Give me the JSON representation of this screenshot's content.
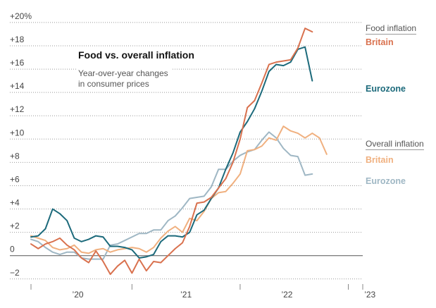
{
  "chart_data": {
    "type": "line",
    "title": "Food vs. overall inflation",
    "subtitle": "Year-over-year changes in consumer prices",
    "ylim": [
      -2.8,
      20.6
    ],
    "xlim": [
      0,
      46
    ],
    "y_ticks": [
      "+20%",
      "+18",
      "+16",
      "+14",
      "+12",
      "+10",
      "+8",
      "+6",
      "+4",
      "+2",
      "0",
      "−2"
    ],
    "y_tick_values": [
      20,
      18,
      16,
      14,
      12,
      10,
      8,
      6,
      4,
      2,
      0,
      -2
    ],
    "x_ticks": [
      "’20",
      "’21",
      "’22",
      "’23"
    ],
    "x_tick_positions": [
      6.5,
      21.5,
      35.5,
      47
    ],
    "x_tick_marks": [
      0,
      14,
      29,
      44,
      46
    ],
    "grid": true,
    "groups": [
      {
        "label": "Food inflation",
        "series_labels": [
          "Britain",
          "Eurozone"
        ]
      },
      {
        "label": "Overall inflation",
        "series_labels": [
          "Britain",
          "Eurozone"
        ]
      }
    ],
    "series": [
      {
        "name": "Britain",
        "group": "Food inflation",
        "color": "#d9714e",
        "values": [
          1.0,
          0.6,
          1.0,
          1.2,
          1.5,
          0.9,
          0.5,
          -0.2,
          -0.6,
          0.4,
          -0.5,
          -1.6,
          -0.9,
          -0.4,
          -1.5,
          -0.3,
          -1.3,
          -0.5,
          -0.6,
          0.0,
          0.6,
          1.1,
          2.5,
          4.5,
          4.6,
          5.0,
          5.8,
          6.6,
          8.0,
          10.0,
          12.7,
          13.3,
          14.8,
          16.4,
          16.6,
          16.7,
          16.8,
          17.8,
          19.5,
          19.2
        ]
      },
      {
        "name": "Eurozone",
        "group": "Food inflation",
        "color": "#1c6a7b",
        "values": [
          1.6,
          1.7,
          2.3,
          4.0,
          3.6,
          3.0,
          1.5,
          1.2,
          1.4,
          1.7,
          1.6,
          0.8,
          0.8,
          0.7,
          0.5,
          -0.2,
          -0.1,
          0.1,
          1.2,
          1.7,
          1.7,
          1.6,
          2.0,
          3.5,
          3.9,
          4.9,
          5.8,
          7.4,
          8.8,
          10.6,
          11.5,
          12.6,
          14.1,
          15.8,
          16.4,
          16.3,
          16.6,
          17.7,
          17.9,
          15.0
        ]
      },
      {
        "name": "Britain",
        "group": "Overall inflation",
        "color": "#f0b07f",
        "values": [
          1.7,
          1.5,
          1.3,
          0.7,
          0.5,
          0.6,
          0.9,
          0.3,
          0.2,
          0.5,
          0.6,
          0.3,
          0.5,
          0.6,
          0.7,
          0.6,
          0.3,
          0.7,
          1.5,
          2.1,
          2.5,
          2.0,
          3.2,
          3.0,
          3.8,
          4.9,
          5.4,
          5.5,
          6.2,
          7.0,
          9.0,
          9.1,
          9.4,
          10.1,
          9.9,
          11.1,
          10.7,
          10.5,
          10.1,
          10.5,
          10.1,
          8.7
        ]
      },
      {
        "name": "Eurozone",
        "group": "Overall inflation",
        "color": "#9fb7c4",
        "values": [
          1.4,
          1.2,
          0.7,
          0.3,
          0.1,
          0.3,
          0.3,
          -0.2,
          -0.3,
          -0.3,
          -0.3,
          0.9,
          1.0,
          1.3,
          1.6,
          1.9,
          1.9,
          2.2,
          2.2,
          3.0,
          3.4,
          4.1,
          4.9,
          5.0,
          5.1,
          5.9,
          7.4,
          7.4,
          8.1,
          8.6,
          8.9,
          9.1,
          9.9,
          10.6,
          10.1,
          9.2,
          8.6,
          8.5,
          6.9,
          7.0
        ]
      }
    ]
  }
}
